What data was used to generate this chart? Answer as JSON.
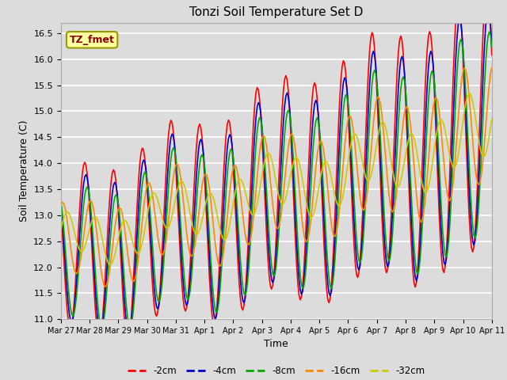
{
  "title": "Tonzi Soil Temperature Set D",
  "xlabel": "Time",
  "ylabel": "Soil Temperature (C)",
  "ylim": [
    11.0,
    16.7
  ],
  "yticks": [
    11.0,
    11.5,
    12.0,
    12.5,
    13.0,
    13.5,
    14.0,
    14.5,
    15.0,
    15.5,
    16.0,
    16.5
  ],
  "bg_color": "#dcdcdc",
  "plot_bg_color": "#dcdcdc",
  "legend_label": "TZ_fmet",
  "legend_text_color": "#8b0000",
  "legend_bg": "#ffffa0",
  "legend_border": "#999900",
  "series_labels": [
    "-2cm",
    "-4cm",
    "-8cm",
    "-16cm",
    "-32cm"
  ],
  "series_colors": [
    "#ff0000",
    "#0000cc",
    "#00aa00",
    "#ff8800",
    "#cccc00"
  ],
  "line_width": 1.2,
  "xtick_labels": [
    "Mar 27",
    "Mar 28",
    "Mar 29",
    "Mar 30",
    "Mar 31",
    "Apr 1",
    "Apr 2",
    "Apr 3",
    "Apr 4",
    "Apr 5",
    "Apr 6",
    "Apr 7",
    "Apr 8",
    "Apr 9",
    "Apr 10",
    "Apr 11"
  ],
  "xtick_positions": [
    0,
    24,
    48,
    72,
    96,
    120,
    144,
    168,
    192,
    216,
    240,
    264,
    288,
    312,
    336,
    360
  ]
}
